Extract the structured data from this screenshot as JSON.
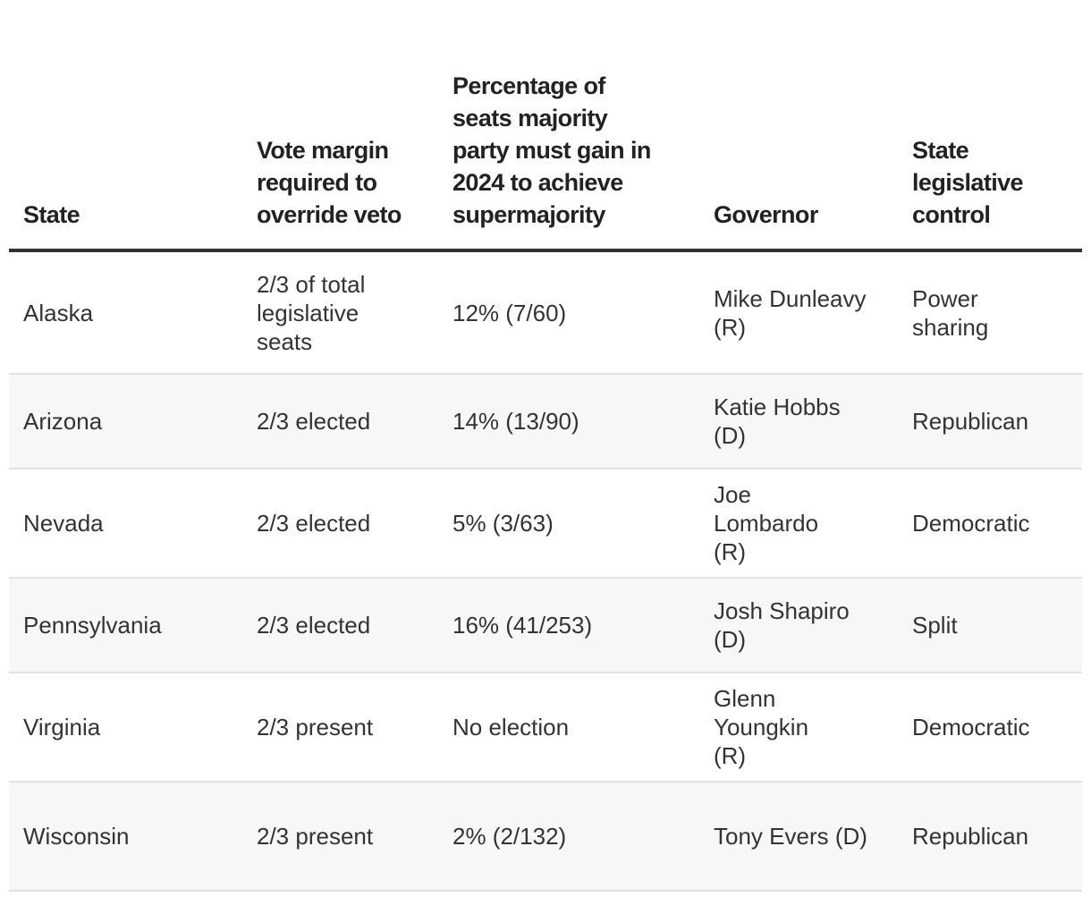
{
  "table": {
    "headers": {
      "state": "State",
      "vote_margin": "Vote margin required to override veto",
      "percentage": "Percentage of seats majority party must gain in 2024 to achieve supermajority",
      "governor": "Governor",
      "control": "State legislative control"
    },
    "rows": [
      {
        "state": "Alaska",
        "vote_margin": "2/3 of total legislative seats",
        "percentage": "12% (7/60)",
        "governor": "Mike Dunleavy (R)",
        "control": "Power sharing"
      },
      {
        "state": "Arizona",
        "vote_margin": "2/3 elected",
        "percentage": "14% (13/90)",
        "governor": "Katie Hobbs (D)",
        "control": "Republican"
      },
      {
        "state": "Nevada",
        "vote_margin": "2/3 elected",
        "percentage": "5% (3/63)",
        "governor": "Joe Lombardo (R)",
        "control": "Democratic"
      },
      {
        "state": "Pennsylvania",
        "vote_margin": "2/3 elected",
        "percentage": "16% (41/253)",
        "governor": "Josh Shapiro (D)",
        "control": "Split"
      },
      {
        "state": "Virginia",
        "vote_margin": "2/3 present",
        "percentage": "No election",
        "governor": "Glenn Youngkin (R)",
        "control": "Democratic"
      },
      {
        "state": "Wisconsin",
        "vote_margin": "2/3 present",
        "percentage": "2% (2/132)",
        "governor": "Tony Evers (D)",
        "control": "Republican"
      }
    ]
  },
  "colors": {
    "header_rule": "#333333",
    "row_divider": "#e2e2e2",
    "alt_row_bg": "#f7f7f7"
  }
}
